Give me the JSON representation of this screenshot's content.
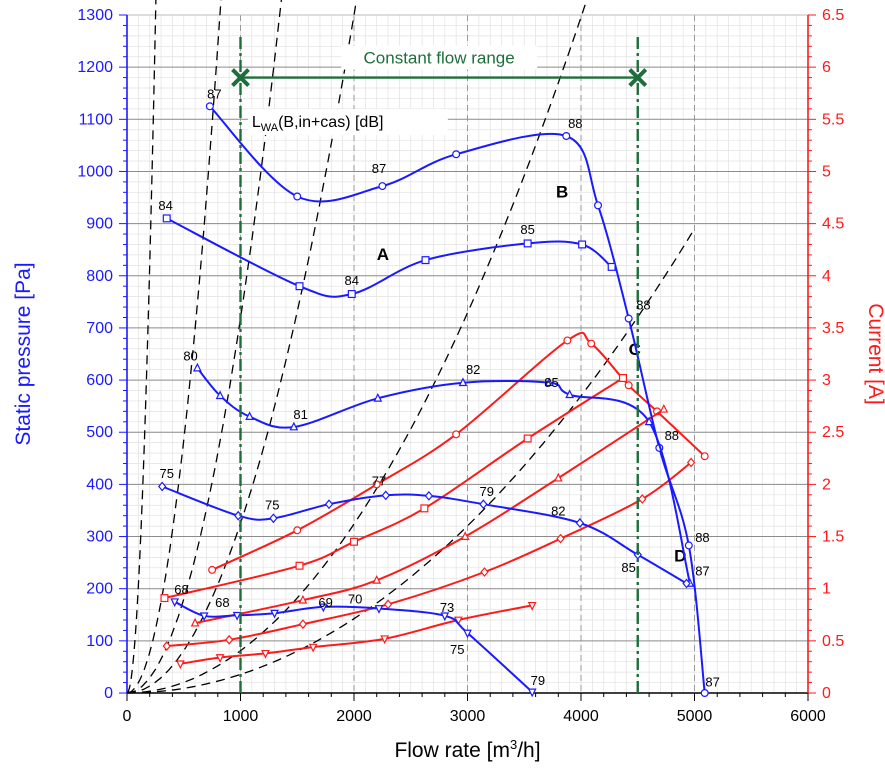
{
  "chart_data": {
    "type": "line",
    "title": "",
    "xlabel": "Flow rate [m³/h]",
    "xlabel_main": "Flow rate [m",
    "xlabel_sup": "3",
    "xlabel_tail": "/h]",
    "ylabel_left": "Static pressure [Pa]",
    "ylabel_right": "Current [A]",
    "xlim": [
      0,
      6000
    ],
    "ylim_left": [
      0,
      1300
    ],
    "ylim_right": [
      0,
      6.5
    ],
    "x_ticks": [
      0,
      1000,
      2000,
      3000,
      4000,
      5000,
      6000
    ],
    "y_left_ticks": [
      0,
      100,
      200,
      300,
      400,
      500,
      600,
      700,
      800,
      900,
      1000,
      1100,
      1200,
      1300
    ],
    "y_right_ticks": [
      0,
      0.5,
      1,
      1.5,
      2,
      2.5,
      3,
      3.5,
      4,
      4.5,
      5,
      5.5,
      6,
      6.5
    ],
    "grid": true,
    "colors": {
      "pressure": "#1a1aff",
      "current": "#ff1a1a",
      "system": "#000000",
      "range": "#1e6e3c"
    },
    "constant_flow_range": {
      "label": "Constant flow range",
      "x_start": 1000,
      "x_end": 4500,
      "y": 1180
    },
    "annotation_lwa": {
      "main": "L",
      "sub": "WA",
      "tail": "(B,in+cas) [dB]",
      "x": 1100,
      "y": 1085
    },
    "pressure_series": [
      {
        "marker": "circle",
        "points": [
          [
            730,
            1125
          ],
          [
            1500,
            952
          ],
          [
            2250,
            972
          ],
          [
            2900,
            1033
          ],
          [
            3870,
            1068
          ],
          [
            4150,
            935
          ],
          [
            4420,
            718
          ],
          [
            4690,
            470
          ],
          [
            4950,
            283
          ],
          [
            5090,
            0
          ]
        ]
      },
      {
        "marker": "square",
        "points": [
          [
            350,
            910
          ],
          [
            1520,
            780
          ],
          [
            1980,
            765
          ],
          [
            2630,
            830
          ],
          [
            3530,
            862
          ],
          [
            4010,
            860
          ],
          [
            4270,
            817
          ]
        ]
      },
      {
        "marker": "triangle-up",
        "points": [
          [
            620,
            623
          ],
          [
            820,
            570
          ],
          [
            1080,
            530
          ],
          [
            1470,
            510
          ],
          [
            2210,
            565
          ],
          [
            2960,
            595
          ],
          [
            3720,
            595
          ],
          [
            3900,
            572
          ],
          [
            4600,
            520
          ],
          [
            4960,
            210
          ]
        ]
      },
      {
        "marker": "diamond",
        "points": [
          [
            310,
            396
          ],
          [
            980,
            340
          ],
          [
            1290,
            335
          ],
          [
            1780,
            362
          ],
          [
            2280,
            379
          ],
          [
            2660,
            378
          ],
          [
            3140,
            362
          ],
          [
            3990,
            326
          ],
          [
            4500,
            265
          ],
          [
            4930,
            210
          ]
        ]
      },
      {
        "marker": "triangle-down",
        "points": [
          [
            420,
            175
          ],
          [
            680,
            148
          ],
          [
            970,
            149
          ],
          [
            1300,
            153
          ],
          [
            1730,
            165
          ],
          [
            2220,
            162
          ],
          [
            2800,
            148
          ],
          [
            3000,
            115
          ],
          [
            3570,
            2
          ]
        ]
      }
    ],
    "current_series": [
      {
        "marker": "circle",
        "points": [
          [
            750,
            1.18
          ],
          [
            1500,
            1.56
          ],
          [
            2200,
            2.0
          ],
          [
            2900,
            2.48
          ],
          [
            3880,
            3.38
          ],
          [
            4090,
            3.35
          ],
          [
            4420,
            2.95
          ],
          [
            4670,
            2.7
          ],
          [
            5090,
            2.27
          ]
        ]
      },
      {
        "marker": "square",
        "points": [
          [
            330,
            0.91
          ],
          [
            1520,
            1.22
          ],
          [
            2000,
            1.45
          ],
          [
            2620,
            1.77
          ],
          [
            3530,
            2.44
          ],
          [
            4370,
            3.02
          ]
        ]
      },
      {
        "marker": "triangle-up",
        "points": [
          [
            600,
            0.67
          ],
          [
            1550,
            0.89
          ],
          [
            2200,
            1.08
          ],
          [
            2980,
            1.5
          ],
          [
            3800,
            2.06
          ],
          [
            4730,
            2.72
          ]
        ]
      },
      {
        "marker": "diamond",
        "points": [
          [
            350,
            0.45
          ],
          [
            900,
            0.51
          ],
          [
            1550,
            0.66
          ],
          [
            2300,
            0.85
          ],
          [
            3150,
            1.16
          ],
          [
            3820,
            1.48
          ],
          [
            4540,
            1.86
          ],
          [
            4970,
            2.21
          ]
        ]
      },
      {
        "marker": "triangle-down",
        "points": [
          [
            470,
            0.28
          ],
          [
            820,
            0.34
          ],
          [
            1220,
            0.38
          ],
          [
            1640,
            0.44
          ],
          [
            2270,
            0.52
          ],
          [
            2920,
            0.7
          ],
          [
            3570,
            0.84
          ]
        ]
      }
    ],
    "system_curves": [
      {
        "label": "",
        "k": 2.05,
        "x_end": 740,
        "label_pos": null
      },
      {
        "label": "A",
        "k": 0.194,
        "x_end": 2260,
        "label_pos": [
          2200,
          830
        ]
      },
      {
        "label": "B",
        "k": 0.0718,
        "x_end": 3880,
        "label_pos": [
          3780,
          950
        ]
      },
      {
        "label": "C",
        "k": 0.0325,
        "x_end": 4430,
        "label_pos": [
          4420,
          648
        ]
      },
      {
        "label": "D",
        "k": 0.0081,
        "x_end": 4960,
        "label_pos": [
          4820,
          252
        ]
      },
      {
        "label": "",
        "k": 0.00356,
        "x_end": 5000,
        "label_pos": null
      }
    ],
    "point_labels": [
      {
        "text": "87",
        "x": 770,
        "y": 1140
      },
      {
        "text": "87",
        "x": 2220,
        "y": 997
      },
      {
        "text": "88",
        "x": 3950,
        "y": 1083
      },
      {
        "text": "84",
        "x": 340,
        "y": 926
      },
      {
        "text": "85",
        "x": 3530,
        "y": 880
      },
      {
        "text": "84",
        "x": 1980,
        "y": 782
      },
      {
        "text": "88",
        "x": 4550,
        "y": 735
      },
      {
        "text": "80",
        "x": 560,
        "y": 638
      },
      {
        "text": "81",
        "x": 1530,
        "y": 525
      },
      {
        "text": "82",
        "x": 3050,
        "y": 612
      },
      {
        "text": "85",
        "x": 3740,
        "y": 587
      },
      {
        "text": "88",
        "x": 4800,
        "y": 485
      },
      {
        "text": "75",
        "x": 350,
        "y": 412
      },
      {
        "text": "75",
        "x": 1280,
        "y": 352
      },
      {
        "text": "77",
        "x": 2220,
        "y": 398
      },
      {
        "text": "79",
        "x": 3170,
        "y": 378
      },
      {
        "text": "82",
        "x": 3800,
        "y": 340
      },
      {
        "text": "88",
        "x": 5070,
        "y": 290
      },
      {
        "text": "87",
        "x": 5070,
        "y": 225
      },
      {
        "text": "85",
        "x": 4420,
        "y": 232
      },
      {
        "text": "68",
        "x": 480,
        "y": 190
      },
      {
        "text": "68",
        "x": 840,
        "y": 165
      },
      {
        "text": "69",
        "x": 1750,
        "y": 165
      },
      {
        "text": "70",
        "x": 2010,
        "y": 172
      },
      {
        "text": "73",
        "x": 2820,
        "y": 155
      },
      {
        "text": "75",
        "x": 2910,
        "y": 75
      },
      {
        "text": "79",
        "x": 3620,
        "y": 15
      },
      {
        "text": "87",
        "x": 5160,
        "y": 12
      }
    ]
  }
}
